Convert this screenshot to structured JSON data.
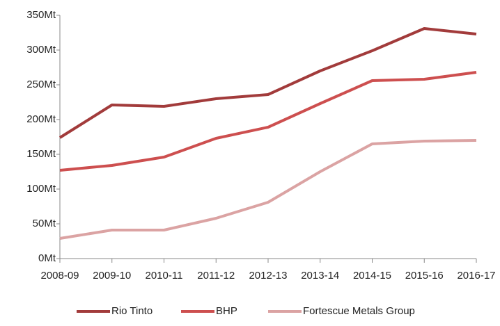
{
  "chart_data": {
    "type": "line",
    "categories": [
      "2008-09",
      "2009-10",
      "2010-11",
      "2011-12",
      "2012-13",
      "2013-14",
      "2014-15",
      "2015-16",
      "2016-17"
    ],
    "series": [
      {
        "name": "Rio Tinto",
        "color": "#a23b3b",
        "values": [
          174,
          221,
          219,
          230,
          236,
          270,
          299,
          331,
          323
        ]
      },
      {
        "name": "BHP",
        "color": "#cd4f4f",
        "values": [
          127,
          134,
          146,
          173,
          189,
          223,
          256,
          258,
          268
        ]
      },
      {
        "name": "Fortescue Metals Group",
        "color": "#dba3a3",
        "values": [
          29,
          41,
          41,
          58,
          81,
          125,
          165,
          169,
          170
        ]
      }
    ],
    "ylim": [
      0,
      350
    ],
    "yticks": [
      {
        "value": 0,
        "label": "0Mt"
      },
      {
        "value": 50,
        "label": "50Mt"
      },
      {
        "value": 100,
        "label": "100Mt"
      },
      {
        "value": 150,
        "label": "150Mt"
      },
      {
        "value": 200,
        "label": "200Mt"
      },
      {
        "value": 250,
        "label": "250Mt"
      },
      {
        "value": 300,
        "label": "300Mt"
      },
      {
        "value": 350,
        "label": "350Mt"
      }
    ],
    "grid": false,
    "legend": "bottom"
  }
}
